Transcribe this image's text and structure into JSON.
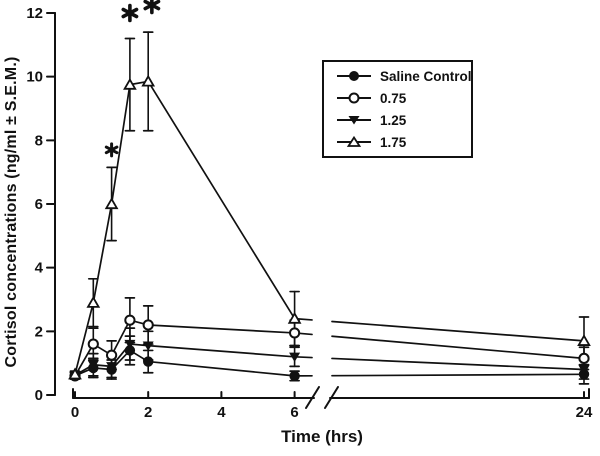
{
  "figure": {
    "background": "#ffffff",
    "ink_color": "#111111"
  },
  "chart_data": {
    "type": "line",
    "title": "",
    "xlabel": "Time (hrs)",
    "ylabel": "Cortisol concentrations (ng/ml ± S.E.M.)",
    "grid": false,
    "error_bars": "± S.E.M.",
    "ylim": [
      0,
      12
    ],
    "y_ticks": [
      0,
      2,
      4,
      6,
      8,
      10,
      12
    ],
    "x_ticks": [
      0,
      2,
      4,
      6,
      24
    ],
    "x_axis_break": {
      "between": [
        6,
        24
      ]
    },
    "x": [
      0,
      0.5,
      1,
      1.5,
      2,
      6,
      24
    ],
    "series": [
      {
        "name": "Saline Control",
        "marker": "filled-circle",
        "y": [
          0.6,
          0.85,
          0.8,
          1.4,
          1.05,
          0.6,
          0.65
        ],
        "err": [
          0.1,
          0.3,
          0.3,
          0.45,
          0.35,
          0.15,
          0.3
        ]
      },
      {
        "name": "0.75",
        "marker": "open-circle",
        "y": [
          0.6,
          1.6,
          1.25,
          2.35,
          2.2,
          1.95,
          1.15
        ],
        "err": [
          0.1,
          0.5,
          0.45,
          0.7,
          0.6,
          0.4,
          0.35
        ]
      },
      {
        "name": "1.25",
        "marker": "filled-triangle-down",
        "y": [
          0.62,
          0.95,
          0.9,
          1.6,
          1.55,
          1.2,
          0.8
        ],
        "err": [
          0.1,
          0.35,
          0.35,
          0.5,
          0.45,
          0.3,
          0.3
        ]
      },
      {
        "name": "1.75",
        "marker": "open-triangle-up",
        "y": [
          0.65,
          2.9,
          6.0,
          9.75,
          9.85,
          2.4,
          1.7
        ],
        "err": [
          0.1,
          0.75,
          1.15,
          1.45,
          1.55,
          0.85,
          0.75
        ]
      }
    ],
    "legend": {
      "position": "upper-right"
    },
    "annotations": [
      {
        "symbol": "*",
        "t": 1.0,
        "v": 7.7,
        "size": "small"
      },
      {
        "symbol": "*",
        "t": 1.5,
        "v": 12.0,
        "size": "large"
      },
      {
        "symbol": "*",
        "t": 2.1,
        "v": 12.25,
        "size": "large"
      }
    ]
  }
}
